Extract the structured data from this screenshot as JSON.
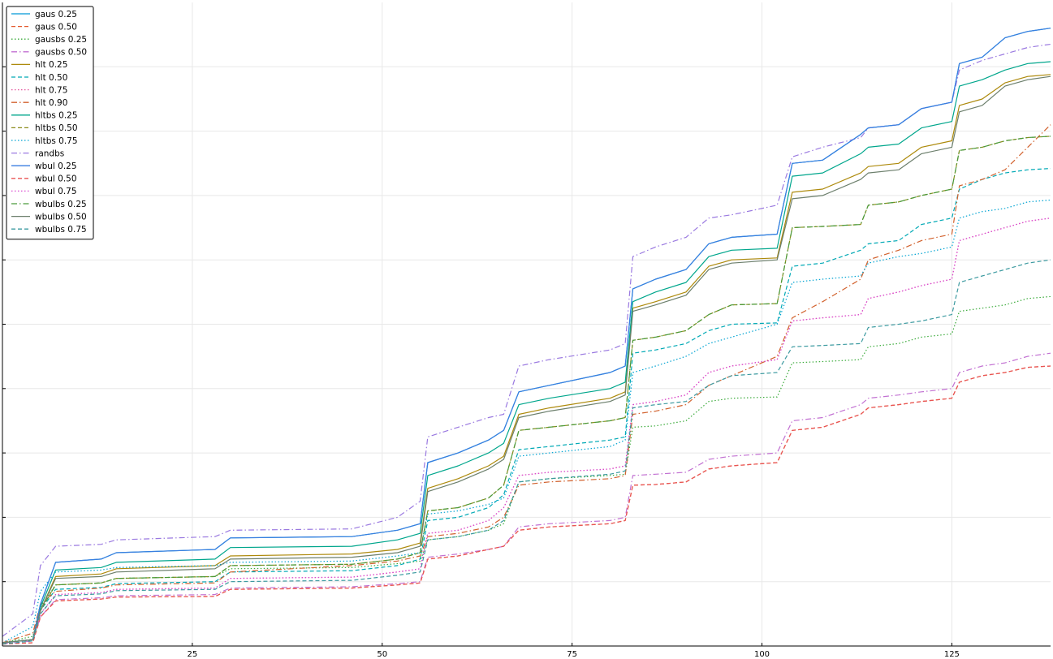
{
  "chart_data": {
    "type": "line",
    "title": "",
    "xlabel": "",
    "ylabel": "",
    "xlim": [
      0,
      138
    ],
    "ylim": [
      0,
      100
    ],
    "x_ticks": [
      25,
      50,
      75,
      100,
      125
    ],
    "x_tick_labels": [
      "25",
      "50",
      "75",
      "100",
      "125"
    ],
    "y_ticks": [
      10,
      20,
      30,
      40,
      50,
      60,
      70,
      80,
      90
    ],
    "y_tick_labels": [],
    "grid": true,
    "legend_position": "top-left",
    "x_breakpoints": [
      0,
      4,
      5,
      7,
      13,
      15,
      28,
      30,
      46,
      52,
      55,
      56,
      60,
      64,
      66,
      68,
      72,
      80,
      82,
      83,
      86,
      90,
      93,
      96,
      102,
      104,
      108,
      113,
      114,
      118,
      121,
      125,
      126,
      129,
      132,
      135,
      138
    ],
    "series": [
      {
        "name": "gaus 0.25",
        "color": "#0099d8",
        "dash": "solid",
        "values": [
          0.5,
          1,
          6.5,
          13,
          13.5,
          14.5,
          15,
          16.8,
          17,
          18,
          19,
          28.5,
          30,
          32,
          33.5,
          39.5,
          40.5,
          42.5,
          43.5,
          55.5,
          57,
          58.5,
          62.5,
          63.5,
          64,
          75,
          75.5,
          79.5,
          80.5,
          81,
          83.5,
          84.5,
          90.5,
          91.5,
          94.5,
          95.5,
          96
        ]
      },
      {
        "name": "gaus 0.50",
        "color": "#e45a2f",
        "dash": "dashed",
        "values": [
          0.3,
          0.5,
          4.5,
          7,
          7.3,
          7.6,
          7.7,
          8.8,
          9,
          9.5,
          9.8,
          13.5,
          14,
          15,
          15.5,
          18,
          18.5,
          19,
          19.5,
          25,
          25.1,
          25.5,
          27.5,
          28,
          28.5,
          33.5,
          34,
          36,
          37,
          37.5,
          38,
          38.5,
          41,
          42,
          42.5,
          43.3,
          43.5
        ]
      },
      {
        "name": "gausbs 0.25",
        "color": "#3bab3b",
        "dash": "dotted",
        "values": [
          0.5,
          1.5,
          6,
          9.5,
          9.8,
          10.5,
          10.8,
          12,
          12.2,
          12.8,
          13.2,
          16.5,
          17,
          18,
          19,
          25.5,
          26,
          26.5,
          26.7,
          34,
          34.2,
          35,
          38,
          38.5,
          38.7,
          44,
          44.2,
          44.5,
          46.5,
          47,
          48,
          48.5,
          52,
          52.5,
          53,
          54,
          54.3
        ]
      },
      {
        "name": "gausbs 0.50",
        "color": "#c271d2",
        "dash": "dashdot",
        "values": [
          0.3,
          0.8,
          4.5,
          7.2,
          7.5,
          7.8,
          8,
          9,
          9.2,
          9.7,
          10,
          13.8,
          14.3,
          15,
          15.5,
          18.5,
          19,
          19.5,
          20,
          26.5,
          26.7,
          27,
          29,
          29.5,
          30,
          35,
          35.5,
          37.5,
          38.5,
          39,
          39.5,
          40,
          42.5,
          43.5,
          44,
          45,
          45.5
        ]
      },
      {
        "name": "hlt 0.25",
        "color": "#ad8a0c",
        "dash": "solid",
        "values": [
          0.5,
          1,
          5.5,
          10.8,
          11.2,
          12,
          12.5,
          14,
          14.3,
          15,
          16,
          24.5,
          26,
          28,
          29.5,
          36,
          37,
          38.5,
          39.5,
          52.5,
          53.5,
          55,
          59,
          60,
          60.3,
          70.5,
          71,
          73.5,
          74.5,
          75,
          77.5,
          78.5,
          84,
          85,
          87.5,
          88.5,
          88.8
        ]
      },
      {
        "name": "hlt 0.50",
        "color": "#00a9b5",
        "dash": "dashed",
        "values": [
          0.5,
          1,
          5.5,
          8.8,
          9.1,
          9.7,
          10,
          11.5,
          11.7,
          12.5,
          13.5,
          19.5,
          20,
          21.5,
          23.5,
          30.5,
          31,
          32,
          32.5,
          45.5,
          46,
          47,
          49,
          50,
          50.2,
          59,
          59.5,
          61.5,
          62.5,
          63,
          65.5,
          66.5,
          71,
          72.5,
          73.5,
          74,
          74.2
        ]
      },
      {
        "name": "hlt 0.75",
        "color": "#e4559d",
        "dash": "dotted",
        "values": [
          0.5,
          1,
          5,
          8,
          8.3,
          8.8,
          9,
          10.5,
          10.7,
          11.5,
          12,
          17.5,
          18,
          19.5,
          21.5,
          26.5,
          27,
          27.5,
          28,
          37.5,
          38,
          39,
          42.5,
          43.5,
          44.5,
          50.5,
          51,
          51.5,
          54,
          55,
          56,
          57,
          63,
          64,
          65,
          66,
          66.5
        ]
      },
      {
        "name": "hlt 0.90",
        "color": "#d2622e",
        "dash": "dashdot",
        "values": [
          0.5,
          2,
          6.5,
          8.5,
          9,
          9.5,
          9.8,
          11.5,
          12.5,
          13.2,
          14,
          17,
          17.5,
          18.5,
          20,
          25,
          25.5,
          26,
          26.5,
          36,
          36.5,
          37.5,
          40.5,
          42,
          45,
          51,
          53.5,
          57,
          60,
          61.5,
          63,
          64,
          71.5,
          72.5,
          74,
          77.5,
          81
        ]
      },
      {
        "name": "hltbs 0.25",
        "color": "#00a68c",
        "dash": "solid",
        "values": [
          0.5,
          1,
          6,
          11.8,
          12.2,
          13,
          13.5,
          15.3,
          15.5,
          16.5,
          17.5,
          26.5,
          28,
          30,
          31.5,
          37.5,
          38.5,
          40,
          41,
          53.5,
          55,
          56.5,
          60.5,
          61.5,
          61.8,
          73,
          73.5,
          76.5,
          77.5,
          78,
          80.5,
          81.5,
          87,
          88,
          89.5,
          90.5,
          90.8
        ]
      },
      {
        "name": "hltbs 0.50",
        "color": "#8b8c1c",
        "dash": "dashed",
        "values": [
          0.5,
          1,
          5.5,
          9.5,
          9.8,
          10.5,
          10.8,
          12.5,
          12.7,
          13.5,
          14.5,
          21,
          21.5,
          23,
          25,
          33.5,
          34,
          35,
          35.5,
          47.5,
          48,
          49,
          51.5,
          53,
          53.2,
          65,
          65.2,
          65.5,
          68.5,
          69,
          70,
          71,
          77,
          77.5,
          78.5,
          79,
          79.2
        ]
      },
      {
        "name": "hltbs 0.75",
        "color": "#00a3d2",
        "dash": "dotted",
        "values": [
          0.5,
          3,
          8.5,
          11.5,
          11.8,
          12.2,
          12.5,
          13,
          13.2,
          14,
          14.5,
          20.5,
          21,
          22,
          23,
          29.5,
          30,
          31,
          32,
          42.5,
          43.5,
          45,
          47,
          48,
          50,
          56.5,
          57,
          57.5,
          59.5,
          60.5,
          61,
          62,
          66.5,
          67.5,
          68,
          69,
          69.3
        ]
      },
      {
        "name": "randbs",
        "color": "#9a79e0",
        "dash": "dashdot",
        "values": [
          1.5,
          5,
          12.5,
          15.5,
          15.8,
          16.5,
          17,
          18,
          18.2,
          20,
          22.5,
          32.5,
          34,
          35.5,
          36,
          43.5,
          44.5,
          46,
          47,
          60.5,
          62,
          63.5,
          66.5,
          67,
          68.5,
          76,
          77.5,
          79,
          80.5,
          81,
          83.5,
          84.5,
          89.5,
          91,
          92,
          93,
          93.5
        ]
      },
      {
        "name": "wbul 0.25",
        "color": "#3a7ee0",
        "dash": "solid",
        "values": [
          0.5,
          1,
          6.5,
          13,
          13.5,
          14.5,
          15,
          16.8,
          17,
          18,
          19,
          28.5,
          30,
          32,
          33.5,
          39.5,
          40.5,
          42.5,
          43.5,
          55.5,
          57,
          58.5,
          62.5,
          63.5,
          64,
          75,
          75.5,
          79.5,
          80.5,
          81,
          83.5,
          84.5,
          90.5,
          91.5,
          94.5,
          95.5,
          96
        ]
      },
      {
        "name": "wbul 0.50",
        "color": "#e95454",
        "dash": "dashed",
        "values": [
          0.3,
          0.5,
          4.5,
          7,
          7.3,
          7.6,
          7.7,
          8.8,
          9,
          9.5,
          9.8,
          13.5,
          14,
          15,
          15.5,
          18,
          18.5,
          19,
          19.5,
          25,
          25.1,
          25.5,
          27.5,
          28,
          28.5,
          33.5,
          34,
          36,
          37,
          37.5,
          38,
          38.5,
          41,
          42,
          42.5,
          43.3,
          43.5
        ]
      },
      {
        "name": "wbul 0.75",
        "color": "#d94ad0",
        "dash": "dotted",
        "values": [
          0.5,
          1,
          5,
          8,
          8.3,
          8.8,
          9,
          10.5,
          10.7,
          11.5,
          12,
          17.5,
          18,
          19.5,
          21.5,
          26.5,
          27,
          27.5,
          28,
          37.5,
          38,
          39,
          42.5,
          43.5,
          44.5,
          50.5,
          51,
          51.5,
          54,
          55,
          56,
          57,
          63,
          64,
          65,
          66,
          66.5
        ]
      },
      {
        "name": "wbulbs 0.25",
        "color": "#4a9a3a",
        "dash": "dashdot",
        "values": [
          0.5,
          1,
          5.5,
          9.5,
          9.8,
          10.5,
          10.8,
          12.5,
          12.7,
          13.5,
          14.5,
          21,
          21.5,
          23,
          25,
          33.5,
          34,
          35,
          35.5,
          47.5,
          48,
          49,
          51.5,
          53,
          53.2,
          65,
          65.2,
          65.5,
          68.5,
          69,
          70,
          71,
          77,
          77.5,
          78.5,
          79,
          79.2
        ]
      },
      {
        "name": "wbulbs 0.50",
        "color": "#6c7f6c",
        "dash": "solid",
        "values": [
          0.5,
          1,
          5.5,
          10.5,
          10.8,
          11.5,
          12,
          13.5,
          13.8,
          14.5,
          15.5,
          24,
          25.5,
          27.5,
          29,
          35.5,
          36.5,
          38,
          39,
          52,
          53,
          54.5,
          58.5,
          59.5,
          60,
          69.5,
          70,
          72.5,
          73.5,
          74,
          76.5,
          77.5,
          83,
          84,
          87,
          88,
          88.5
        ]
      },
      {
        "name": "wbulbs 0.75",
        "color": "#3c9aa0",
        "dash": "dashed",
        "values": [
          0.3,
          0.8,
          5,
          7.8,
          8.1,
          8.6,
          8.8,
          10,
          10.2,
          11,
          11.5,
          16.5,
          17,
          18,
          19.5,
          25.5,
          26,
          26.7,
          27.2,
          37,
          37.5,
          38,
          40.5,
          42,
          42.5,
          46.5,
          46.7,
          47,
          49.5,
          50,
          50.5,
          51.5,
          56.5,
          57.5,
          58.5,
          59.5,
          60
        ]
      }
    ]
  }
}
